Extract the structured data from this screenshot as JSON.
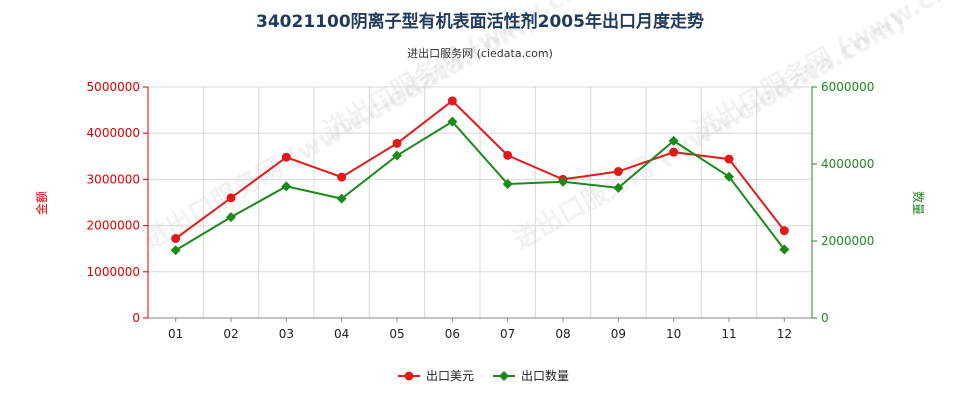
{
  "chart_data": {
    "type": "line",
    "title": "34021100阴离子型有机表面活性剂2005年出口月度走势",
    "subtitle": "进出口服务网 (ciedata.com)",
    "watermark": "进出口服务网 (www.ciedata.com)",
    "categories": [
      "01",
      "02",
      "03",
      "04",
      "05",
      "06",
      "07",
      "08",
      "09",
      "10",
      "11",
      "12"
    ],
    "y_left": {
      "label": "金额",
      "range": [
        0,
        5000000
      ],
      "ticks": [
        "0",
        "1000000",
        "2000000",
        "3000000",
        "4000000",
        "5000000"
      ],
      "color": "#dd0000"
    },
    "y_right": {
      "label": "数量",
      "range": [
        0,
        6000000
      ],
      "ticks": [
        "0",
        "2000000",
        "4000000",
        "6000000"
      ],
      "color": "#228822"
    },
    "series": [
      {
        "name": "出口美元",
        "axis": "left",
        "color": "#e31a1c",
        "marker": "circle",
        "values": [
          1720000,
          2600000,
          3480000,
          3050000,
          3780000,
          4700000,
          3520000,
          3000000,
          3170000,
          3590000,
          3440000,
          1890000
        ]
      },
      {
        "name": "出口数量",
        "axis": "right",
        "color": "#1a8a1a",
        "marker": "diamond",
        "values": [
          1760000,
          2620000,
          3420000,
          3100000,
          4220000,
          5100000,
          3480000,
          3540000,
          3380000,
          4600000,
          3670000,
          1780000
        ]
      }
    ],
    "grid": true,
    "legend": "bottom-center"
  }
}
